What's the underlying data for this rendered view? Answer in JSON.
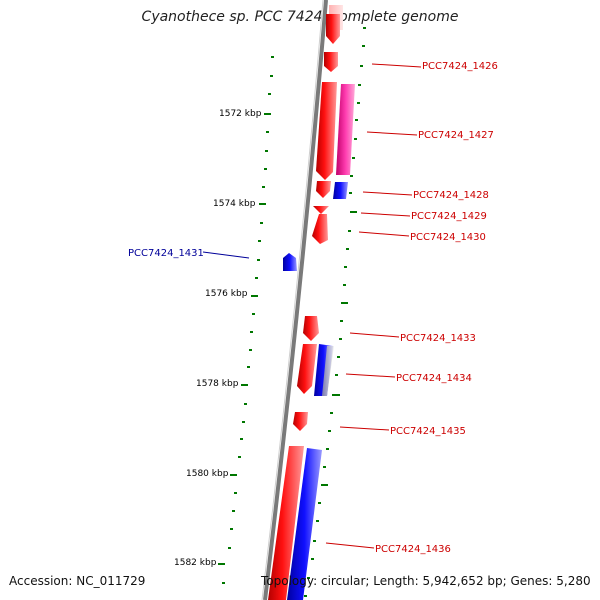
{
  "title": "Cyanothece sp. PCC 7424, complete genome",
  "footer": {
    "accession": "Accession: NC_011729",
    "topology": "Topology: circular; Length: 5,942,652 bp; Genes: 5,280"
  },
  "kbp_labels": [
    "1572 kbp",
    "1574 kbp",
    "1576 kbp",
    "1578 kbp",
    "1580 kbp",
    "1582 kbp"
  ],
  "genes": [
    {
      "name": "PCC7424_1426",
      "color": "#cc0000"
    },
    {
      "name": "PCC7424_1427",
      "color": "#cc0000"
    },
    {
      "name": "PCC7424_1428",
      "color": "#cc0000"
    },
    {
      "name": "PCC7424_1429",
      "color": "#cc0000"
    },
    {
      "name": "PCC7424_1430",
      "color": "#cc0000"
    },
    {
      "name": "PCC7424_1431",
      "color": "#000099"
    },
    {
      "name": "PCC7424_1433",
      "color": "#cc0000"
    },
    {
      "name": "PCC7424_1434",
      "color": "#cc0000"
    },
    {
      "name": "PCC7424_1435",
      "color": "#cc0000"
    },
    {
      "name": "PCC7424_1436",
      "color": "#cc0000"
    }
  ],
  "colors": {
    "forward_gene": "#ff0000",
    "reverse_gene": "#0000ff",
    "rna_gene": "#ff33aa",
    "backbone": "#777777",
    "ticks": "#006600"
  }
}
